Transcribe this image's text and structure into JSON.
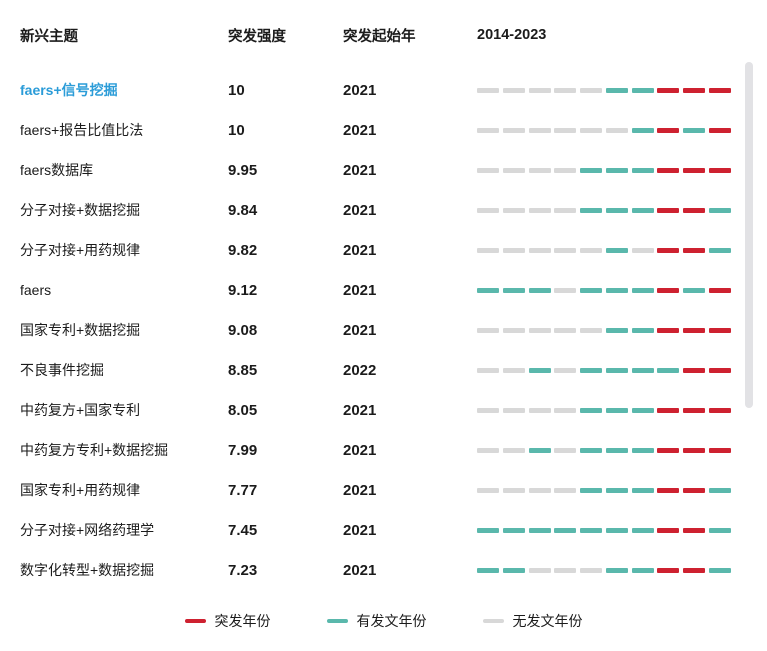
{
  "header": {
    "topic": "新兴主题",
    "strength": "突发强度",
    "start_year": "突发起始年",
    "range": "2014-2023"
  },
  "colors": {
    "burst": "#ce2130",
    "pub": "#5ab8ac",
    "none": "#d8d8d8",
    "highlight_topic": "#2b9cd8",
    "scrollbar": "#e2e2e5"
  },
  "chart_data": {
    "type": "table",
    "title": "2014-2023",
    "columns": [
      "新兴主题",
      "突发强度",
      "突发起始年",
      "2014-2023"
    ],
    "years": [
      2014,
      2015,
      2016,
      2017,
      2018,
      2019,
      2020,
      2021,
      2022,
      2023
    ],
    "legend": [
      {
        "label": "突发年份",
        "key": "burst"
      },
      {
        "label": "有发文年份",
        "key": "pub"
      },
      {
        "label": "无发文年份",
        "key": "none"
      }
    ],
    "rows": [
      {
        "topic": "faers+信号挖掘",
        "strength": "10",
        "start_year": "2021",
        "highlighted": true,
        "timeline": [
          "none",
          "none",
          "none",
          "none",
          "none",
          "pub",
          "pub",
          "burst",
          "burst",
          "burst"
        ]
      },
      {
        "topic": "faers+报告比值比法",
        "strength": "10",
        "start_year": "2021",
        "highlighted": false,
        "timeline": [
          "none",
          "none",
          "none",
          "none",
          "none",
          "none",
          "pub",
          "burst",
          "pub",
          "burst"
        ]
      },
      {
        "topic": "faers数据库",
        "strength": "9.95",
        "start_year": "2021",
        "highlighted": false,
        "timeline": [
          "none",
          "none",
          "none",
          "none",
          "pub",
          "pub",
          "pub",
          "burst",
          "burst",
          "burst"
        ]
      },
      {
        "topic": "分子对接+数据挖掘",
        "strength": "9.84",
        "start_year": "2021",
        "highlighted": false,
        "timeline": [
          "none",
          "none",
          "none",
          "none",
          "pub",
          "pub",
          "pub",
          "burst",
          "burst",
          "pub"
        ]
      },
      {
        "topic": "分子对接+用药规律",
        "strength": "9.82",
        "start_year": "2021",
        "highlighted": false,
        "timeline": [
          "none",
          "none",
          "none",
          "none",
          "none",
          "pub",
          "none",
          "burst",
          "burst",
          "pub"
        ]
      },
      {
        "topic": "faers",
        "strength": "9.12",
        "start_year": "2021",
        "highlighted": false,
        "timeline": [
          "pub",
          "pub",
          "pub",
          "none",
          "pub",
          "pub",
          "pub",
          "burst",
          "pub",
          "burst"
        ]
      },
      {
        "topic": "国家专利+数据挖掘",
        "strength": "9.08",
        "start_year": "2021",
        "highlighted": false,
        "timeline": [
          "none",
          "none",
          "none",
          "none",
          "none",
          "pub",
          "pub",
          "burst",
          "burst",
          "burst"
        ]
      },
      {
        "topic": "不良事件挖掘",
        "strength": "8.85",
        "start_year": "2022",
        "highlighted": false,
        "timeline": [
          "none",
          "none",
          "pub",
          "none",
          "pub",
          "pub",
          "pub",
          "pub",
          "burst",
          "burst"
        ]
      },
      {
        "topic": "中药复方+国家专利",
        "strength": "8.05",
        "start_year": "2021",
        "highlighted": false,
        "timeline": [
          "none",
          "none",
          "none",
          "none",
          "pub",
          "pub",
          "pub",
          "burst",
          "burst",
          "burst"
        ]
      },
      {
        "topic": "中药复方专利+数据挖掘",
        "strength": "7.99",
        "start_year": "2021",
        "highlighted": false,
        "timeline": [
          "none",
          "none",
          "pub",
          "none",
          "pub",
          "pub",
          "pub",
          "burst",
          "burst",
          "burst"
        ]
      },
      {
        "topic": "国家专利+用药规律",
        "strength": "7.77",
        "start_year": "2021",
        "highlighted": false,
        "timeline": [
          "none",
          "none",
          "none",
          "none",
          "pub",
          "pub",
          "pub",
          "burst",
          "burst",
          "pub"
        ]
      },
      {
        "topic": "分子对接+网络药理学",
        "strength": "7.45",
        "start_year": "2021",
        "highlighted": false,
        "timeline": [
          "pub",
          "pub",
          "pub",
          "pub",
          "pub",
          "pub",
          "pub",
          "burst",
          "burst",
          "pub"
        ]
      },
      {
        "topic": "数字化转型+数据挖掘",
        "strength": "7.23",
        "start_year": "2021",
        "highlighted": false,
        "timeline": [
          "pub",
          "pub",
          "none",
          "none",
          "none",
          "pub",
          "pub",
          "burst",
          "burst",
          "pub"
        ]
      }
    ]
  }
}
